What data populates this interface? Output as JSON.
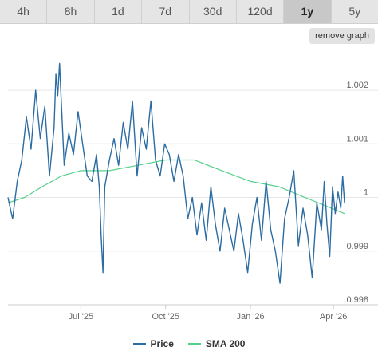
{
  "tabs": [
    {
      "label": "4h",
      "active": false
    },
    {
      "label": "8h",
      "active": false
    },
    {
      "label": "1d",
      "active": false
    },
    {
      "label": "7d",
      "active": false
    },
    {
      "label": "30d",
      "active": false
    },
    {
      "label": "120d",
      "active": false
    },
    {
      "label": "1y",
      "active": true
    },
    {
      "label": "5y",
      "active": false
    }
  ],
  "remove_graph_label": "remove graph",
  "chart_data": {
    "type": "line",
    "title": "",
    "xlabel": "",
    "ylabel": "",
    "xlim": [
      "2025-04-13",
      "2026-04-13"
    ],
    "ylim": [
      0.998,
      1.0027
    ],
    "y_ticks": [
      {
        "value": 0.998,
        "label": "0.998"
      },
      {
        "value": 0.999,
        "label": "0.999"
      },
      {
        "value": 1.0,
        "label": "1"
      },
      {
        "value": 1.001,
        "label": "1.001"
      },
      {
        "value": 1.002,
        "label": "1.002"
      }
    ],
    "x_ticks": [
      {
        "value": "2025-07-01",
        "label": "Jul '25"
      },
      {
        "value": "2025-10-01",
        "label": "Oct '25"
      },
      {
        "value": "2026-01-01",
        "label": "Jan '26"
      },
      {
        "value": "2026-04-01",
        "label": "Apr '26"
      }
    ],
    "grid": true,
    "legend_position": "bottom-center",
    "colors": {
      "price": "#2b6ca3",
      "sma": "#55d08a",
      "grid": "#e6e6e6",
      "axis_text": "#666666"
    },
    "series": [
      {
        "name": "Price",
        "color": "#2b6ca3",
        "points": [
          [
            "2025-04-13",
            1.0
          ],
          [
            "2025-04-18",
            0.9996
          ],
          [
            "2025-04-23",
            1.0003
          ],
          [
            "2025-04-28",
            1.0007
          ],
          [
            "2025-05-03",
            1.0015
          ],
          [
            "2025-05-08",
            1.0009
          ],
          [
            "2025-05-13",
            1.002
          ],
          [
            "2025-05-18",
            1.0011
          ],
          [
            "2025-05-23",
            1.0017
          ],
          [
            "2025-05-28",
            1.0004
          ],
          [
            "2025-06-02",
            1.0013
          ],
          [
            "2025-06-04",
            1.0023
          ],
          [
            "2025-06-06",
            1.0019
          ],
          [
            "2025-06-08",
            1.0025
          ],
          [
            "2025-06-13",
            1.0006
          ],
          [
            "2025-06-18",
            1.0012
          ],
          [
            "2025-06-23",
            1.0008
          ],
          [
            "2025-06-28",
            1.0016
          ],
          [
            "2025-07-03",
            1.001
          ],
          [
            "2025-07-08",
            1.0004
          ],
          [
            "2025-07-13",
            1.0003
          ],
          [
            "2025-07-18",
            1.0008
          ],
          [
            "2025-07-21",
            1.0002
          ],
          [
            "2025-07-23",
            0.9993
          ],
          [
            "2025-07-25",
            0.9986
          ],
          [
            "2025-07-27",
            1.0002
          ],
          [
            "2025-08-01",
            1.0007
          ],
          [
            "2025-08-06",
            1.0011
          ],
          [
            "2025-08-11",
            1.0006
          ],
          [
            "2025-08-16",
            1.0014
          ],
          [
            "2025-08-21",
            1.0009
          ],
          [
            "2025-08-26",
            1.0018
          ],
          [
            "2025-08-31",
            1.0004
          ],
          [
            "2025-09-05",
            1.0013
          ],
          [
            "2025-09-10",
            1.0009
          ],
          [
            "2025-09-15",
            1.0018
          ],
          [
            "2025-09-20",
            1.0007
          ],
          [
            "2025-09-25",
            1.0004
          ],
          [
            "2025-09-30",
            1.001
          ],
          [
            "2025-10-05",
            1.0008
          ],
          [
            "2025-10-10",
            1.0003
          ],
          [
            "2025-10-15",
            1.0008
          ],
          [
            "2025-10-20",
            1.0004
          ],
          [
            "2025-10-25",
            0.9996
          ],
          [
            "2025-10-30",
            1.0
          ],
          [
            "2025-11-04",
            0.9993
          ],
          [
            "2025-11-09",
            0.9999
          ],
          [
            "2025-11-14",
            0.9992
          ],
          [
            "2025-11-19",
            1.0002
          ],
          [
            "2025-11-24",
            0.9995
          ],
          [
            "2025-11-29",
            0.999
          ],
          [
            "2025-12-04",
            0.9998
          ],
          [
            "2025-12-09",
            0.9994
          ],
          [
            "2025-12-14",
            0.999
          ],
          [
            "2025-12-19",
            0.9997
          ],
          [
            "2025-12-24",
            0.9992
          ],
          [
            "2025-12-29",
            0.9986
          ],
          [
            "2026-01-03",
            0.9995
          ],
          [
            "2026-01-08",
            1.0
          ],
          [
            "2026-01-13",
            0.9992
          ],
          [
            "2026-01-18",
            1.0003
          ],
          [
            "2026-01-23",
            0.9994
          ],
          [
            "2026-01-28",
            0.999
          ],
          [
            "2026-02-02",
            0.9984
          ],
          [
            "2026-02-07",
            0.9996
          ],
          [
            "2026-02-12",
            1.0
          ],
          [
            "2026-02-17",
            1.0005
          ],
          [
            "2026-02-22",
            0.9991
          ],
          [
            "2026-02-27",
            0.9998
          ],
          [
            "2026-03-04",
            0.9993
          ],
          [
            "2026-03-09",
            0.9985
          ],
          [
            "2026-03-14",
            0.9999
          ],
          [
            "2026-03-19",
            0.9994
          ],
          [
            "2026-03-22",
            1.0003
          ],
          [
            "2026-03-25",
            0.9995
          ],
          [
            "2026-03-28",
            0.9989
          ],
          [
            "2026-03-31",
            1.0002
          ],
          [
            "2026-04-03",
            0.9997
          ],
          [
            "2026-04-06",
            1.0001
          ],
          [
            "2026-04-09",
            0.9998
          ],
          [
            "2026-04-11",
            1.0004
          ],
          [
            "2026-04-13",
            0.9999
          ]
        ]
      },
      {
        "name": "SMA 200",
        "color": "#55d08a",
        "points": [
          [
            "2025-04-13",
            0.9999
          ],
          [
            "2025-05-01",
            1.0
          ],
          [
            "2025-05-20",
            1.0002
          ],
          [
            "2025-06-10",
            1.0004
          ],
          [
            "2025-07-01",
            1.0005
          ],
          [
            "2025-08-01",
            1.0005
          ],
          [
            "2025-09-01",
            1.0006
          ],
          [
            "2025-10-01",
            1.0007
          ],
          [
            "2025-11-01",
            1.0007
          ],
          [
            "2025-12-01",
            1.0005
          ],
          [
            "2026-01-01",
            1.0003
          ],
          [
            "2026-02-01",
            1.0002
          ],
          [
            "2026-03-01",
            1.0
          ],
          [
            "2026-04-13",
            0.9997
          ]
        ]
      }
    ]
  }
}
